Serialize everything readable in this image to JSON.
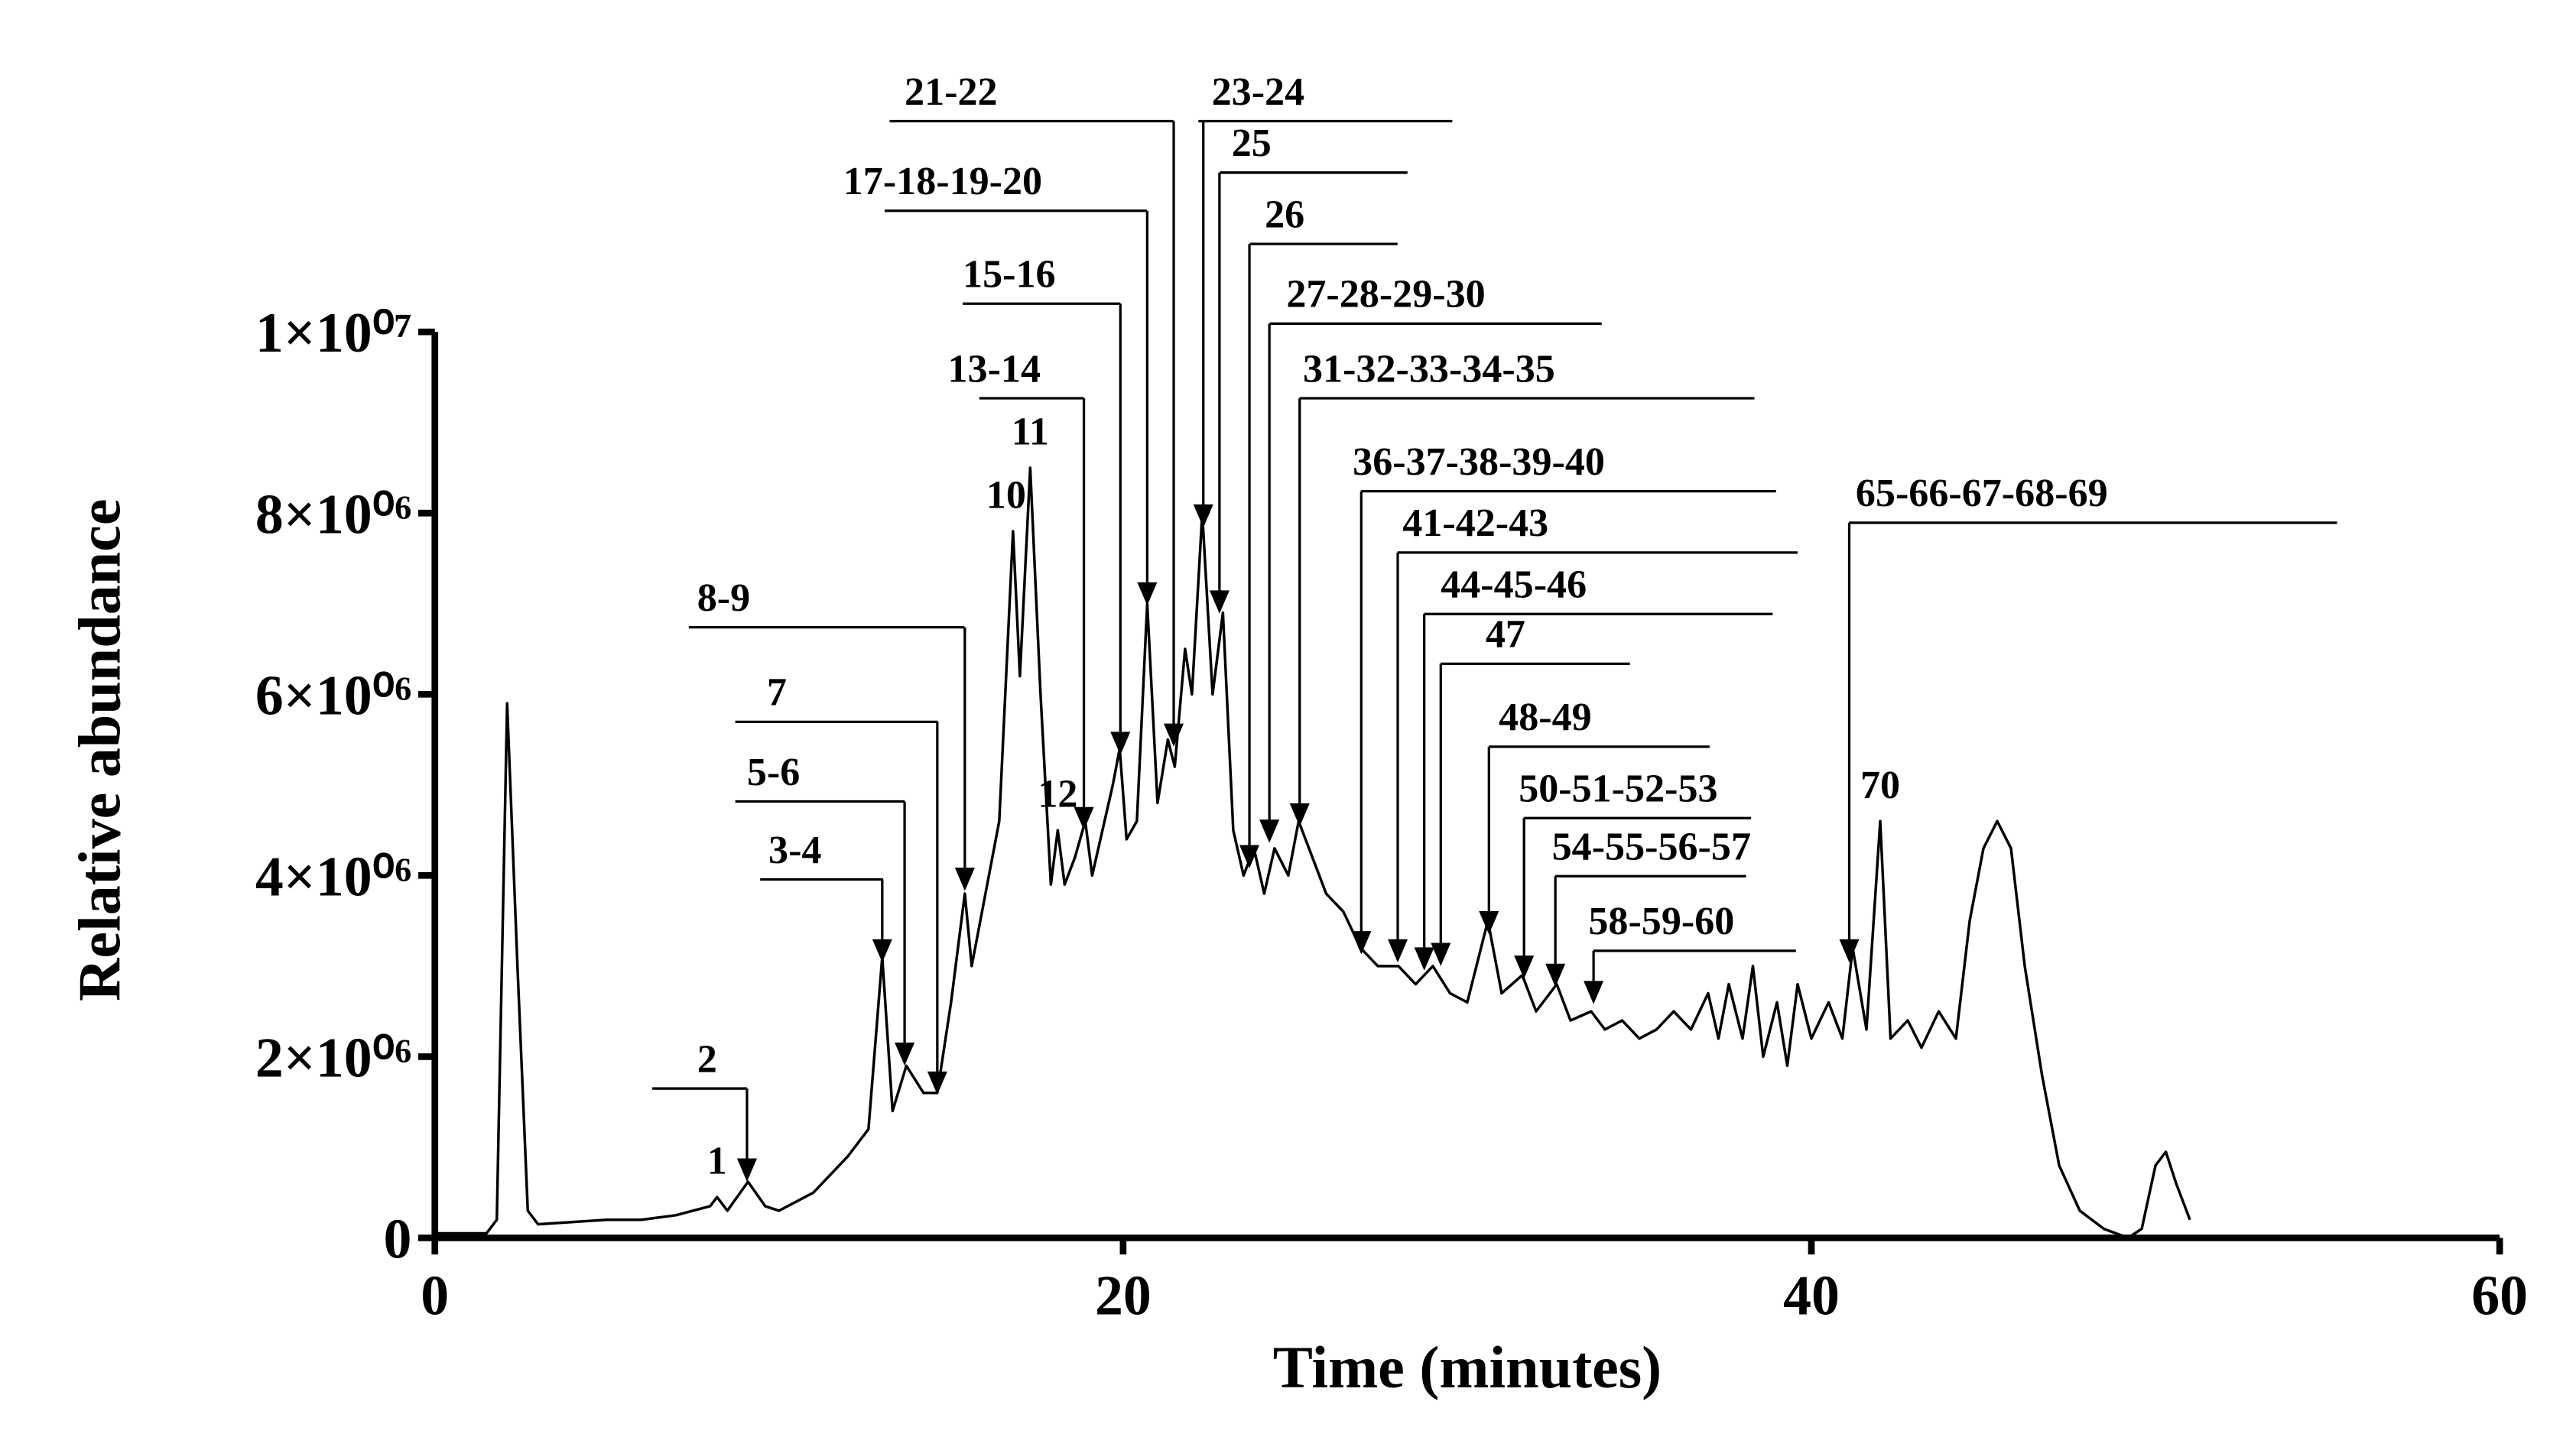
{
  "chart_data": {
    "type": "line",
    "x_label": "Time (minutes)",
    "y_label": "Relative abundance",
    "xlim": [
      0,
      60
    ],
    "xticks": [
      0,
      20,
      40,
      60
    ],
    "ylim": [
      0,
      10000000
    ],
    "yticks": [
      0,
      {
        "value": 2000000,
        "label": "2×10⁰⁶"
      },
      {
        "value": 4000000,
        "label": "4×10⁰⁶"
      },
      {
        "value": 6000000,
        "label": "6×10⁰⁶"
      },
      {
        "value": 8000000,
        "label": "8×10⁰⁶"
      },
      {
        "value": 10000000,
        "label": "1×10⁰⁷"
      }
    ],
    "color": "#000000",
    "x": [
      0,
      1.5,
      1.8,
      2.1,
      2.4,
      2.7,
      3.0,
      5,
      6,
      7,
      8,
      8.2,
      8.5,
      9.1,
      9.6,
      10,
      11,
      12,
      12.6,
      13.0,
      13.3,
      13.7,
      14.2,
      14.6,
      15.0,
      15.4,
      15.6,
      16,
      16.4,
      16.8,
      17.0,
      17.3,
      17.6,
      17.9,
      18.1,
      18.3,
      18.6,
      18.9,
      19.1,
      19.4,
      19.7,
      19.9,
      20.1,
      20.4,
      20.7,
      21.0,
      21.3,
      21.5,
      21.8,
      22.0,
      22.3,
      22.6,
      22.9,
      23.2,
      23.5,
      23.8,
      24.1,
      24.4,
      24.8,
      25.1,
      25.5,
      25.9,
      26.4,
      26.9,
      27.4,
      28.0,
      28.5,
      29.0,
      29.5,
      30.0,
      30.6,
      31.0,
      31.6,
      32.0,
      32.6,
      33.0,
      33.6,
      34.0,
      34.5,
      35.0,
      35.5,
      36,
      36.5,
      37,
      37.3,
      37.6,
      38,
      38.3,
      38.6,
      39.0,
      39.3,
      39.6,
      40,
      40.5,
      40.9,
      41.2,
      41.6,
      42.0,
      42.3,
      42.8,
      43.2,
      43.7,
      44.2,
      44.6,
      45.0,
      45.4,
      45.8,
      46.2,
      46.7,
      47.2,
      47.8,
      48.5,
      49.2,
      49.6,
      50.0,
      50.3,
      50.6,
      51.0
    ],
    "values": [
      50000,
      50000,
      200000,
      5900000,
      3000000,
      300000,
      150000,
      200000,
      200000,
      250000,
      350000,
      450000,
      300000,
      620000,
      350000,
      300000,
      500000,
      900000,
      1200000,
      3100000,
      1400000,
      1900000,
      1600000,
      1600000,
      2600000,
      3800000,
      3000000,
      3800000,
      4600000,
      7800000,
      6200000,
      8500000,
      6000000,
      3900000,
      4500000,
      3900000,
      4200000,
      4600000,
      4000000,
      4500000,
      5000000,
      5400000,
      4400000,
      4600000,
      7000000,
      4800000,
      5500000,
      5200000,
      6500000,
      6000000,
      8000000,
      6000000,
      6900000,
      4500000,
      4000000,
      4300000,
      3800000,
      4300000,
      4000000,
      4600000,
      4200000,
      3800000,
      3600000,
      3200000,
      3000000,
      3000000,
      2800000,
      3000000,
      2700000,
      2600000,
      3500000,
      2700000,
      2900000,
      2500000,
      2800000,
      2400000,
      2500000,
      2300000,
      2400000,
      2200000,
      2300000,
      2500000,
      2300000,
      2700000,
      2200000,
      2800000,
      2200000,
      3000000,
      2000000,
      2600000,
      1900000,
      2800000,
      2200000,
      2600000,
      2200000,
      3200000,
      2300000,
      4600000,
      2200000,
      2400000,
      2100000,
      2500000,
      2200000,
      3500000,
      4300000,
      4600000,
      4300000,
      3000000,
      1800000,
      800000,
      300000,
      100000,
      0,
      100000,
      800000,
      950000,
      600000,
      200000
    ],
    "annotations": [
      {
        "label": "2",
        "x": 9.07,
        "y": 620000
      },
      {
        "label": "3-4",
        "x": 13.0,
        "y": 3040000
      },
      {
        "label": "5-6",
        "x": 13.65,
        "y": 1900000
      },
      {
        "label": "7",
        "x": 14.6,
        "y": 1580000
      },
      {
        "label": "8-9",
        "x": 15.4,
        "y": 3830000
      },
      {
        "label": "13-14",
        "x": 18.86,
        "y": 4500000
      },
      {
        "label": "15-16",
        "x": 19.92,
        "y": 5330000
      },
      {
        "label": "17-18-19-20",
        "x": 20.7,
        "y": 6980000
      },
      {
        "label": "21-22",
        "x": 21.47,
        "y": 5420000
      },
      {
        "label": "23-24",
        "x": 22.33,
        "y": 7840000
      },
      {
        "label": "25",
        "x": 22.8,
        "y": 6890000
      },
      {
        "label": "26",
        "x": 23.67,
        "y": 4080000
      },
      {
        "label": "27-28-29-30",
        "x": 24.25,
        "y": 4360000
      },
      {
        "label": "31-32-33-34-35",
        "x": 25.13,
        "y": 4540000
      },
      {
        "label": "36-37-38-39-40",
        "x": 26.92,
        "y": 3130000
      },
      {
        "label": "41-42-43",
        "x": 27.98,
        "y": 3040000
      },
      {
        "label": "44-45-46",
        "x": 28.75,
        "y": 2950000
      },
      {
        "label": "47",
        "x": 29.23,
        "y": 3000000
      },
      {
        "label": "48-49",
        "x": 30.63,
        "y": 3350000
      },
      {
        "label": "50-51-52-53",
        "x": 31.65,
        "y": 2860000
      },
      {
        "label": "54-55-56-57",
        "x": 32.56,
        "y": 2770000
      },
      {
        "label": "58-59-60",
        "x": 33.67,
        "y": 2580000
      },
      {
        "label": "65-66-67-68-69",
        "x": 41.1,
        "y": 3040000
      }
    ],
    "peak_labels": [
      {
        "label": "1",
        "x": 8.2,
        "y": 450000
      },
      {
        "label": "10",
        "x": 16.6,
        "y": 7800000
      },
      {
        "label": "11",
        "x": 17.3,
        "y": 8500000
      },
      {
        "label": "12",
        "x": 18.1,
        "y": 4500000
      },
      {
        "label": "70",
        "x": 42.0,
        "y": 4600000
      }
    ]
  }
}
